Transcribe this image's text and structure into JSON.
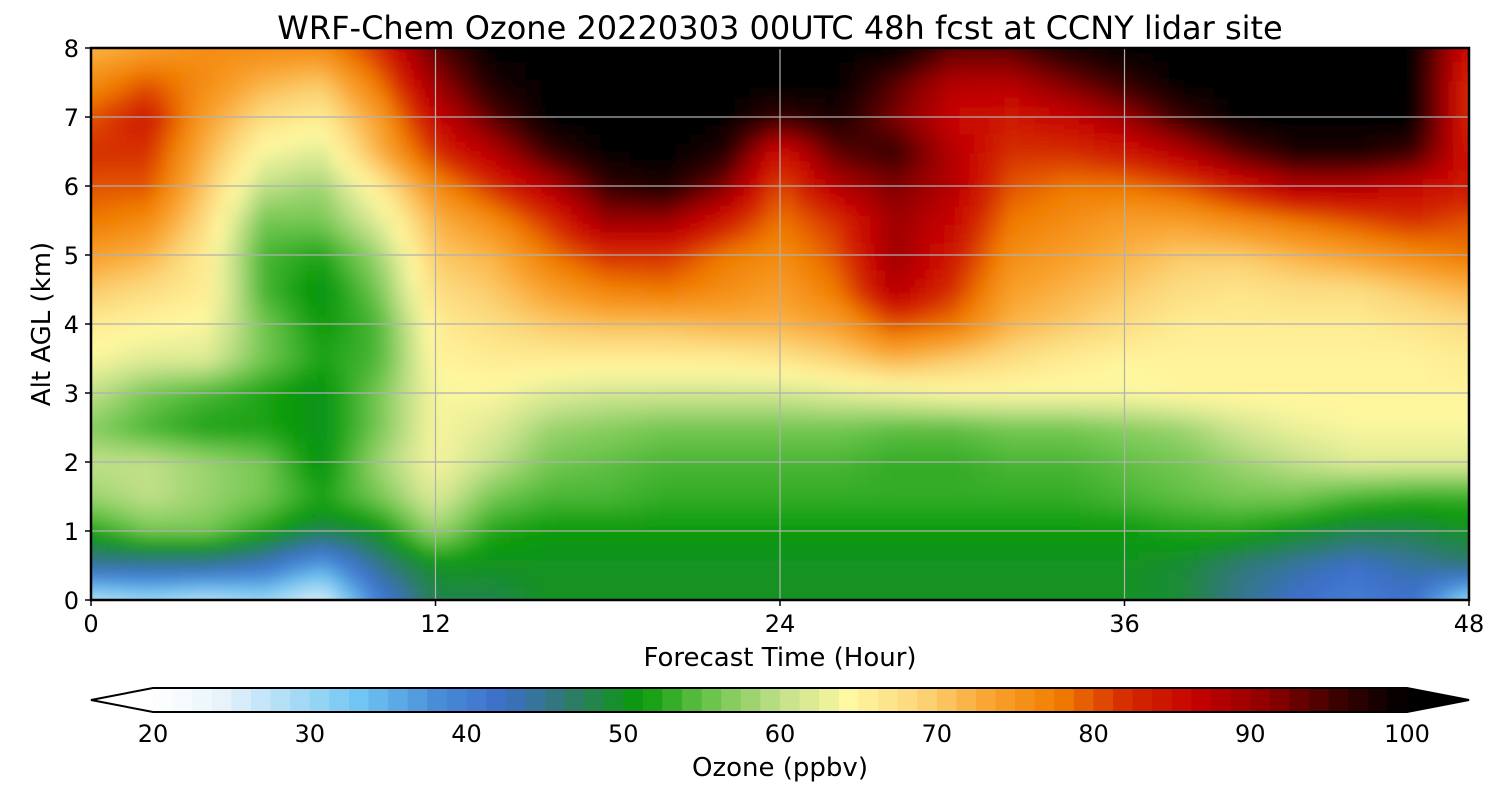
{
  "chart_data": {
    "type": "heatmap",
    "title": "WRF-Chem Ozone  20220303 00UTC 48h fcst at CCNY lidar site",
    "xlabel": "Forecast Time (Hour)",
    "ylabel": "Alt AGL (km)",
    "xlim": [
      0,
      48
    ],
    "ylim": [
      0,
      8
    ],
    "xticks": [
      0,
      12,
      24,
      36,
      48
    ],
    "yticks": [
      0,
      1,
      2,
      3,
      4,
      5,
      6,
      7,
      8
    ],
    "grid": true,
    "x": [
      0,
      2,
      4,
      6,
      8,
      10,
      12,
      14,
      16,
      18,
      20,
      22,
      24,
      26,
      28,
      30,
      32,
      34,
      36,
      38,
      40,
      42,
      44,
      46,
      48
    ],
    "y": [
      0,
      0.5,
      1,
      1.5,
      2,
      2.5,
      3,
      3.5,
      4,
      4.5,
      5,
      5.5,
      6,
      6.5,
      7,
      7.5,
      8
    ],
    "z": [
      [
        28,
        30,
        28,
        30,
        25,
        40,
        48,
        48,
        50,
        50,
        50,
        50,
        50,
        50,
        50,
        50,
        50,
        50,
        50,
        49,
        45,
        42,
        40,
        42,
        30
      ],
      [
        44,
        44,
        44,
        42,
        36,
        45,
        50,
        50,
        50,
        50,
        50,
        50,
        50,
        50,
        50,
        50,
        50,
        50,
        50,
        49,
        46,
        44,
        42,
        44,
        46
      ],
      [
        52,
        56,
        56,
        52,
        48,
        50,
        58,
        52,
        51,
        51,
        51,
        51,
        51,
        51,
        51,
        51,
        51,
        51,
        51,
        52,
        52,
        50,
        48,
        48,
        50
      ],
      [
        58,
        60,
        58,
        56,
        52,
        56,
        62,
        56,
        54,
        54,
        53,
        53,
        53,
        53,
        53,
        53,
        53,
        53,
        54,
        55,
        56,
        56,
        54,
        53,
        53
      ],
      [
        60,
        60,
        58,
        56,
        50,
        58,
        64,
        60,
        56,
        55,
        54,
        54,
        54,
        54,
        53,
        53,
        54,
        54,
        55,
        56,
        58,
        60,
        62,
        62,
        62
      ],
      [
        57,
        54,
        52,
        52,
        50,
        56,
        64,
        62,
        58,
        57,
        56,
        56,
        56,
        56,
        55,
        55,
        56,
        56,
        57,
        58,
        61,
        63,
        64,
        64,
        64
      ],
      [
        60,
        56,
        54,
        52,
        50,
        56,
        64,
        64,
        62,
        61,
        61,
        61,
        61,
        62,
        63,
        64,
        64,
        64,
        64,
        65,
        65,
        65,
        65,
        65,
        65
      ],
      [
        64,
        62,
        62,
        56,
        52,
        54,
        65,
        66,
        66,
        66,
        66,
        66,
        67,
        69,
        72,
        70,
        68,
        66,
        65,
        65,
        65,
        65,
        65,
        65,
        66
      ],
      [
        66,
        65,
        64,
        56,
        51,
        54,
        66,
        68,
        70,
        71,
        71,
        72,
        72,
        74,
        80,
        78,
        72,
        70,
        68,
        66,
        66,
        66,
        66,
        67,
        68
      ],
      [
        70,
        68,
        66,
        54,
        50,
        56,
        68,
        70,
        74,
        77,
        78,
        76,
        74,
        78,
        88,
        82,
        74,
        72,
        70,
        68,
        67,
        68,
        68,
        70,
        72
      ],
      [
        74,
        72,
        66,
        54,
        52,
        58,
        70,
        72,
        78,
        82,
        82,
        78,
        76,
        80,
        90,
        84,
        76,
        74,
        72,
        70,
        70,
        72,
        74,
        76,
        78
      ],
      [
        78,
        76,
        68,
        56,
        56,
        62,
        72,
        76,
        82,
        90,
        90,
        84,
        78,
        82,
        90,
        86,
        78,
        76,
        74,
        74,
        76,
        78,
        80,
        82,
        80
      ],
      [
        80,
        80,
        70,
        60,
        58,
        66,
        76,
        82,
        88,
        96,
        98,
        92,
        80,
        88,
        92,
        88,
        80,
        78,
        78,
        80,
        84,
        88,
        88,
        86,
        84
      ],
      [
        82,
        82,
        72,
        64,
        62,
        72,
        82,
        88,
        96,
        100,
        100,
        98,
        84,
        94,
        96,
        88,
        82,
        82,
        84,
        88,
        94,
        98,
        98,
        96,
        84
      ],
      [
        80,
        84,
        74,
        68,
        66,
        74,
        86,
        94,
        100,
        100,
        100,
        100,
        96,
        98,
        92,
        86,
        84,
        86,
        90,
        96,
        100,
        100,
        100,
        100,
        82
      ],
      [
        76,
        80,
        76,
        72,
        70,
        78,
        90,
        98,
        100,
        100,
        100,
        100,
        100,
        100,
        94,
        88,
        88,
        92,
        96,
        100,
        100,
        100,
        100,
        100,
        82
      ],
      [
        72,
        74,
        76,
        76,
        76,
        82,
        94,
        100,
        100,
        100,
        100,
        100,
        100,
        100,
        100,
        94,
        94,
        98,
        100,
        100,
        100,
        100,
        100,
        100,
        84
      ]
    ],
    "colorbar": {
      "label": "Ozone  (ppbv)",
      "min": 20,
      "max": 100,
      "ticks": [
        20,
        30,
        40,
        50,
        60,
        70,
        80,
        90,
        100
      ],
      "extend": "both",
      "colors": [
        "#ffffff",
        "#e6f3fb",
        "#aadcf5",
        "#6ec4f2",
        "#4a90d9",
        "#3d6fc9",
        "#2e7a6a",
        "#0a9a0a",
        "#6cc44c",
        "#c2e08a",
        "#fff8a0",
        "#fcd67a",
        "#f9a431",
        "#f07d00",
        "#d42a00",
        "#c40000",
        "#8e0000",
        "#3c0000",
        "#000000"
      ]
    }
  }
}
